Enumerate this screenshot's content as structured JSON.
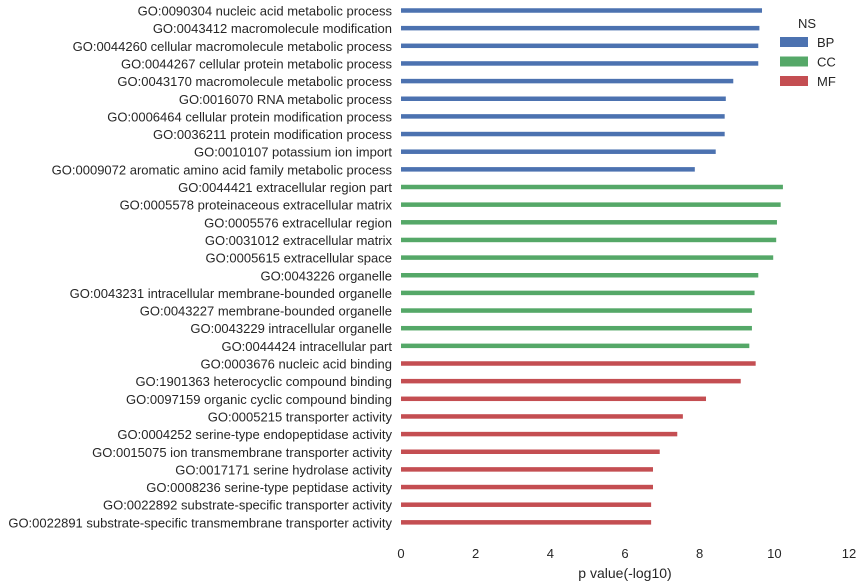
{
  "chart_data": {
    "type": "bar",
    "orientation": "horizontal",
    "xlabel": "p value(-log10)",
    "ylabel": "",
    "xlim": [
      0,
      12
    ],
    "xticks": [
      0,
      2,
      4,
      6,
      8,
      10,
      12
    ],
    "grid": false,
    "legend": {
      "title": "NS",
      "position": "top-right",
      "entries": [
        {
          "name": "BP",
          "color": "#4c72b0"
        },
        {
          "name": "CC",
          "color": "#55a868"
        },
        {
          "name": "MF",
          "color": "#c44e52"
        }
      ]
    },
    "categories": [
      "GO:0090304 nucleic acid metabolic process",
      "GO:0043412 macromolecule modification",
      "GO:0044260 cellular macromolecule metabolic process",
      "GO:0044267 cellular protein metabolic process",
      "GO:0043170 macromolecule metabolic process",
      "GO:0016070 RNA metabolic process",
      "GO:0006464 cellular protein modification process",
      "GO:0036211 protein modification process",
      "GO:0010107 potassium ion import",
      "GO:0009072 aromatic amino acid family metabolic process",
      "GO:0044421 extracellular region part",
      "GO:0005578 proteinaceous extracellular matrix",
      "GO:0005576 extracellular region",
      "GO:0031012 extracellular matrix",
      "GO:0005615 extracellular space",
      "GO:0043226 organelle",
      "GO:0043231 intracellular membrane-bounded organelle",
      "GO:0043227 membrane-bounded organelle",
      "GO:0043229 intracellular organelle",
      "GO:0044424 intracellular part",
      "GO:0003676 nucleic acid binding",
      "GO:1901363 heterocyclic compound binding",
      "GO:0097159 organic cyclic compound binding",
      "GO:0005215 transporter activity",
      "GO:0004252 serine-type endopeptidase activity",
      "GO:0015075 ion transmembrane transporter activity",
      "GO:0017171 serine hydrolase activity",
      "GO:0008236 serine-type peptidase activity",
      "GO:0022892 substrate-specific transporter activity",
      "GO:0022891 substrate-specific transmembrane transporter activity"
    ],
    "groups": [
      "BP",
      "BP",
      "BP",
      "BP",
      "BP",
      "BP",
      "BP",
      "BP",
      "BP",
      "BP",
      "CC",
      "CC",
      "CC",
      "CC",
      "CC",
      "CC",
      "CC",
      "CC",
      "CC",
      "CC",
      "MF",
      "MF",
      "MF",
      "MF",
      "MF",
      "MF",
      "MF",
      "MF",
      "MF",
      "MF"
    ],
    "values": [
      9.67,
      9.6,
      9.57,
      9.57,
      8.9,
      8.7,
      8.67,
      8.67,
      8.43,
      7.87,
      10.23,
      10.17,
      10.07,
      10.05,
      9.97,
      9.57,
      9.47,
      9.4,
      9.4,
      9.33,
      9.5,
      9.1,
      8.17,
      7.55,
      7.4,
      6.93,
      6.75,
      6.75,
      6.7,
      6.7
    ]
  }
}
